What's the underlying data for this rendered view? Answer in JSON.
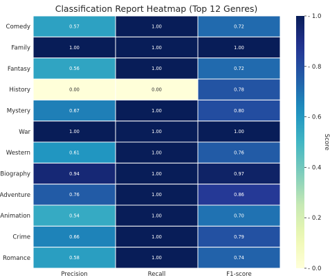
{
  "chart_data": {
    "type": "heatmap",
    "title": "Classification Report Heatmap (Top 12 Genres)",
    "columns": [
      "Precision",
      "Recall",
      "F1-score"
    ],
    "rows": [
      "Comedy",
      "Family",
      "Fantasy",
      "History",
      "Mystery",
      "War",
      "Western",
      "Biography",
      "Adventure",
      "Animation",
      "Crime",
      "Romance"
    ],
    "values": [
      [
        0.57,
        1.0,
        0.72
      ],
      [
        1.0,
        1.0,
        1.0
      ],
      [
        0.56,
        1.0,
        0.72
      ],
      [
        0.0,
        0.0,
        0.78
      ],
      [
        0.67,
        1.0,
        0.8
      ],
      [
        1.0,
        1.0,
        1.0
      ],
      [
        0.61,
        1.0,
        0.76
      ],
      [
        0.94,
        1.0,
        0.97
      ],
      [
        0.76,
        1.0,
        0.86
      ],
      [
        0.54,
        1.0,
        0.7
      ],
      [
        0.66,
        1.0,
        0.79
      ],
      [
        0.58,
        1.0,
        0.74
      ]
    ],
    "value_format": "0.00",
    "colormap": "YlGnBu",
    "vmin": 0.0,
    "vmax": 1.0,
    "colorbar": {
      "label": "Score",
      "ticks": [
        0.0,
        0.2,
        0.4,
        0.6,
        0.8,
        1.0
      ],
      "tick_labels": [
        "0.0",
        "0.2",
        "0.4",
        "0.6",
        "0.8",
        "1.0"
      ]
    },
    "grid_line_color": "#ffffff"
  }
}
